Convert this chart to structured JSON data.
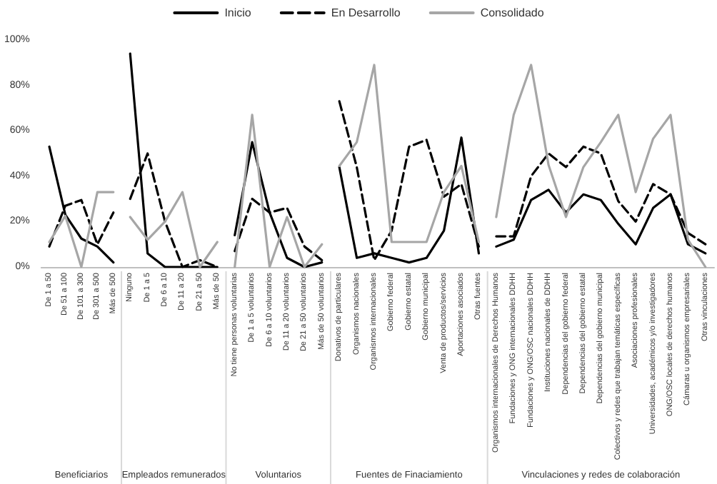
{
  "chart_data": [
    {
      "type": "line",
      "xlabel": "Beneficiarios",
      "categories": [
        "De 1 a 50",
        "De 51 a 100",
        "De 101 a 300",
        "De 301 a 500",
        "Más de 500"
      ],
      "series": [
        {
          "name": "Inicio",
          "color": "#000000",
          "line_style": "solid",
          "values": [
            53,
            23,
            12.5,
            9,
            2
          ]
        },
        {
          "name": "En Desarrollo",
          "color": "#000000",
          "line_style": "dashed",
          "values": [
            9,
            27,
            29.5,
            10,
            24
          ]
        },
        {
          "name": "Consolidado",
          "color": "#a6a6a6",
          "line_style": "solid",
          "values": [
            11,
            22.5,
            0,
            33,
            33
          ]
        }
      ],
      "ylim": [
        0,
        100
      ],
      "yticks": [
        {
          "value": 0,
          "label": "0%"
        },
        {
          "value": 20,
          "label": "20%"
        },
        {
          "value": 40,
          "label": "40%"
        },
        {
          "value": 60,
          "label": "60%"
        },
        {
          "value": 80,
          "label": "80%"
        },
        {
          "value": 100,
          "label": "100%"
        }
      ],
      "grid": false,
      "legend": "top",
      "marker": "none"
    },
    {
      "type": "line",
      "xlabel": "Empleados remunerados",
      "categories": [
        "Ninguno",
        "De 1 a 5",
        "De 6 a 10",
        "De 11 a 20",
        "De 21 a 50",
        "Más de 50"
      ],
      "series": [
        {
          "name": "Inicio",
          "color": "#000000",
          "line_style": "solid",
          "values": [
            94,
            6,
            0,
            0,
            0,
            0
          ]
        },
        {
          "name": "En Desarrollo",
          "color": "#000000",
          "line_style": "dashed",
          "values": [
            30,
            50,
            20,
            0,
            3,
            0
          ]
        },
        {
          "name": "Consolidado",
          "color": "#a6a6a6",
          "line_style": "solid",
          "values": [
            22,
            12,
            20,
            33,
            0,
            11
          ]
        }
      ],
      "ylim": [
        0,
        100
      ],
      "tick_labels": "x",
      "grid": false,
      "marker": "none"
    },
    {
      "type": "line",
      "xlabel": "Voluntarios",
      "categories": [
        "No tiene personas voluntarias",
        "De 1 a 5 voluntarios",
        "De 6 a 10 voluntarios",
        "De 11 a 20 voluntarios",
        "De 21 a 50 voluntarios",
        "Más de 50 voluntarios"
      ],
      "series": [
        {
          "name": "Inicio",
          "color": "#000000",
          "line_style": "solid",
          "values": [
            14,
            55,
            24,
            4,
            0,
            2
          ]
        },
        {
          "name": "En Desarrollo",
          "color": "#000000",
          "line_style": "dashed",
          "values": [
            7,
            30,
            24,
            26,
            9,
            3
          ]
        },
        {
          "name": "Consolidado",
          "color": "#a6a6a6",
          "line_style": "solid",
          "values": [
            0,
            67,
            0,
            22,
            0,
            10
          ]
        }
      ],
      "ylim": [
        0,
        100
      ],
      "tick_labels": "x",
      "grid": false,
      "marker": "none"
    },
    {
      "type": "line",
      "xlabel": "Fuentes de Finaciamiento",
      "categories": [
        "Donativos de particulares",
        "Organismos nacionales",
        "Organismos internacionales",
        "Gobierno federal",
        "Gobierno estatal",
        "Gobierno municipal",
        "Venta de productos/servicios",
        "Aportaciones asociados",
        "Otras fuentes"
      ],
      "series": [
        {
          "name": "Inicio",
          "color": "#000000",
          "line_style": "solid",
          "values": [
            44,
            4,
            6,
            4,
            2,
            4,
            16,
            57,
            6
          ]
        },
        {
          "name": "En Desarrollo",
          "color": "#000000",
          "line_style": "dashed",
          "values": [
            73,
            44,
            3,
            16,
            53,
            56,
            31,
            36.5,
            9
          ]
        },
        {
          "name": "Consolidado",
          "color": "#a6a6a6",
          "line_style": "solid",
          "values": [
            44.5,
            55,
            89,
            11,
            11,
            11,
            33,
            44.5,
            11
          ]
        }
      ],
      "ylim": [
        0,
        100
      ],
      "tick_labels": "x",
      "grid": false,
      "marker": "none"
    },
    {
      "type": "line",
      "xlabel": "Vinculaciones y redes de colaboración",
      "categories": [
        "Organismos internacionales de Derechos Humanos",
        "Fundaciones y ONG internacionales DDHH",
        "Fundaciones y ONG/OSC nacionales DDHH",
        "Instituciones nacionales de DDHH",
        "Dependencias del gobierno federal",
        "Dependencias del gobierno estatal",
        "Dependencias del gobierno municipal",
        "Colectivos y redes que trabajan temáticas específicas",
        "Asociaciones profesionales",
        "Universidades, académicos y/o investigadores",
        "ONG/OSC locales de derechos humanos",
        "Cámaras u organismos empresariales",
        "Otras vinculaciones"
      ],
      "series": [
        {
          "name": "Inicio",
          "color": "#000000",
          "line_style": "solid",
          "values": [
            9,
            12,
            29.5,
            34,
            24,
            32,
            29.5,
            19,
            10,
            26,
            32,
            10,
            6
          ]
        },
        {
          "name": "En Desarrollo",
          "color": "#000000",
          "line_style": "dashed",
          "values": [
            13.5,
            13.5,
            40,
            50,
            44,
            53,
            50,
            29,
            20,
            36.5,
            32,
            15,
            10
          ]
        },
        {
          "name": "Consolidado",
          "color": "#a6a6a6",
          "line_style": "solid",
          "values": [
            22,
            67,
            89,
            45,
            22,
            44,
            55,
            67,
            33,
            56.5,
            67,
            12,
            0
          ]
        }
      ],
      "ylim": [
        0,
        100
      ],
      "tick_labels": "x",
      "grid": false,
      "marker": "none"
    }
  ]
}
